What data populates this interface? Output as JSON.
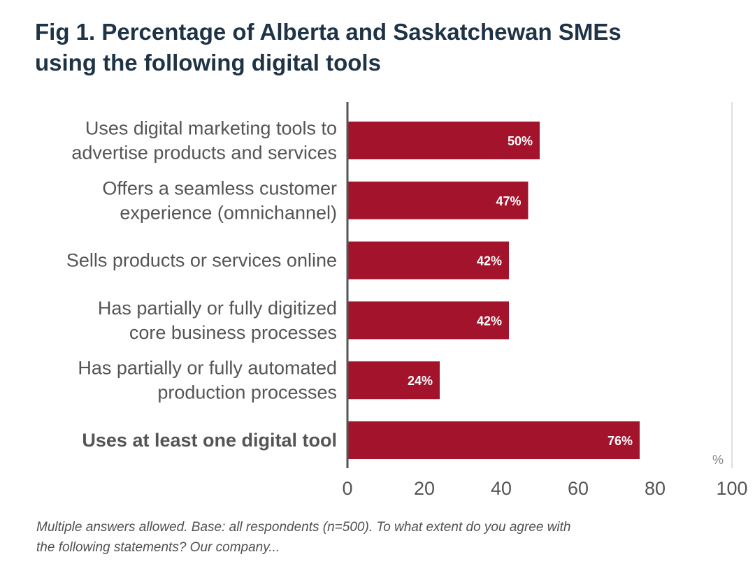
{
  "title_lines": [
    "Fig 1. Percentage of Alberta and Saskatchewan SMEs",
    "using the following digital tools"
  ],
  "footnote_lines": [
    "Multiple answers allowed. Base: all respondents (n=500). To what extent do you agree with",
    "the following statements? Our company..."
  ],
  "chart_data": {
    "type": "bar",
    "orientation": "horizontal",
    "title": "Fig 1. Percentage of Alberta and Saskatchewan SMEs using the following digital tools",
    "categories": [
      [
        "Uses digital marketing tools to",
        "advertise products and services"
      ],
      [
        "Offers a seamless customer",
        "experience (omnichannel)"
      ],
      [
        "Sells products or services online"
      ],
      [
        "Has partially or fully digitized",
        "core business processes"
      ],
      [
        "Has partially or fully automated",
        "production processes"
      ],
      [
        "Uses at least one digital tool"
      ]
    ],
    "bold_categories": [
      5
    ],
    "values": [
      50,
      47,
      42,
      42,
      24,
      76
    ],
    "value_labels": [
      "50%",
      "47%",
      "42%",
      "42%",
      "24%",
      "76%"
    ],
    "xlim": [
      0,
      100
    ],
    "xticks": [
      0,
      20,
      40,
      60,
      80,
      100
    ],
    "xlabel": "%",
    "ylabel": "",
    "grid": false,
    "colors": {
      "bar": "#a3142c",
      "value_label": "#ffffff",
      "axis": "#555555",
      "tick_text": "#555555",
      "category_text": "#555555",
      "right_border": "#dddddd"
    }
  }
}
